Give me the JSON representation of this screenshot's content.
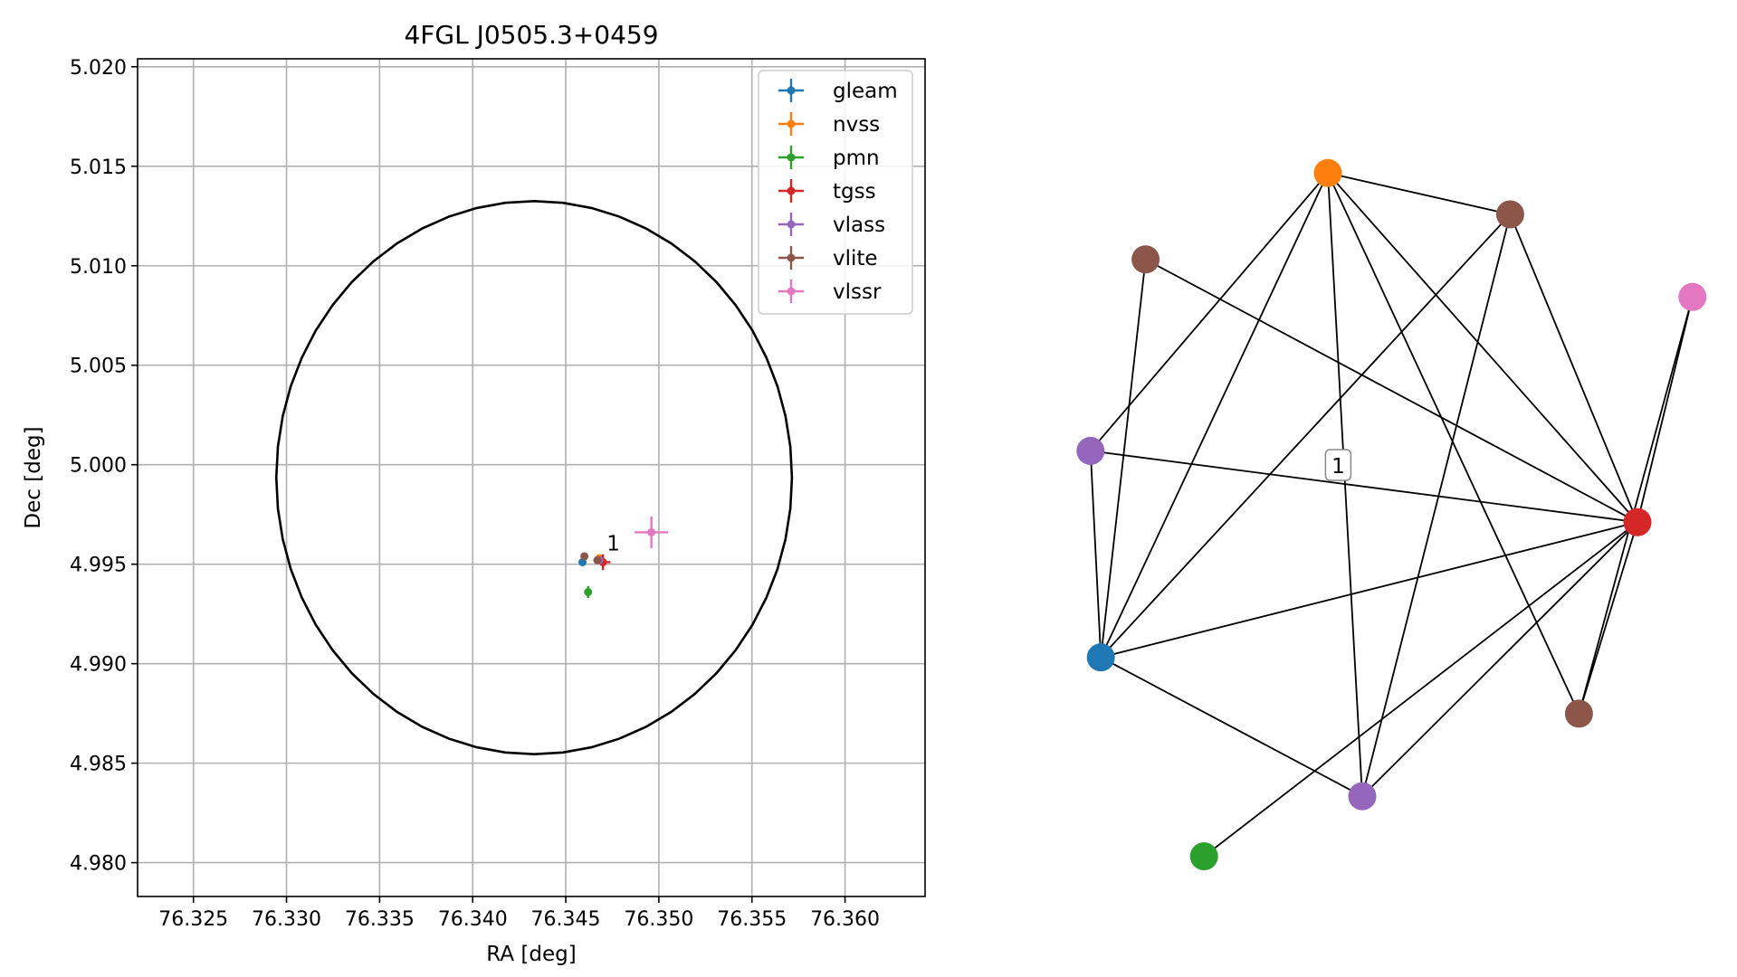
{
  "chart_data": [
    {
      "type": "scatter",
      "title": "4FGL J0505.3+0459",
      "xlabel": "RA [deg]",
      "ylabel": "Dec [deg]",
      "xlim": [
        76.322,
        76.3643
      ],
      "ylim": [
        4.9783,
        5.0204
      ],
      "xticks": [
        76.325,
        76.33,
        76.335,
        76.34,
        76.345,
        76.35,
        76.355,
        76.36
      ],
      "xtick_labels": [
        "76.325",
        "76.330",
        "76.335",
        "76.340",
        "76.345",
        "76.350",
        "76.355",
        "76.360"
      ],
      "yticks": [
        4.98,
        4.985,
        4.99,
        4.995,
        5.0,
        5.005,
        5.01,
        5.015,
        5.02
      ],
      "ytick_labels": [
        "4.980",
        "4.985",
        "4.990",
        "4.995",
        "5.000",
        "5.005",
        "5.010",
        "5.015",
        "5.020"
      ],
      "grid": true,
      "legend_position": "top-right",
      "ellipse": {
        "center_ra": 76.3433,
        "center_dec": 4.99935,
        "semi_ra": 0.01385,
        "semi_dec": 0.0139,
        "color": "#000000"
      },
      "series": [
        {
          "name": "gleam",
          "color": "#1f77b4",
          "points": [
            {
              "ra": 76.3459,
              "dec": 4.9951,
              "err_ra": 0.0001,
              "err_dec": 0.0001
            }
          ]
        },
        {
          "name": "nvss",
          "color": "#ff7f0e",
          "points": [
            {
              "ra": 76.3468,
              "dec": 4.9953,
              "err_ra": 0.0001,
              "err_dec": 0.0002
            }
          ]
        },
        {
          "name": "pmn",
          "color": "#2ca02c",
          "points": [
            {
              "ra": 76.3462,
              "dec": 4.9936,
              "err_ra": 0.0001,
              "err_dec": 0.0003
            }
          ]
        },
        {
          "name": "tgss",
          "color": "#d62728",
          "points": [
            {
              "ra": 76.347,
              "dec": 4.9951,
              "err_ra": 0.0004,
              "err_dec": 0.0004
            }
          ]
        },
        {
          "name": "vlass",
          "color": "#9467bd",
          "points": [
            {
              "ra": 76.3468,
              "dec": 4.9952,
              "err_ra": 0.0001,
              "err_dec": 0.0001
            }
          ]
        },
        {
          "name": "vlite",
          "color": "#8c564b",
          "points": [
            {
              "ra": 76.346,
              "dec": 4.9954,
              "err_ra": 0.0001,
              "err_dec": 0.0001
            },
            {
              "ra": 76.3467,
              "dec": 4.9952,
              "err_ra": 0.0001,
              "err_dec": 0.0001
            }
          ]
        },
        {
          "name": "vlssr",
          "color": "#e377c2",
          "points": [
            {
              "ra": 76.3496,
              "dec": 4.9966,
              "err_ra": 0.0009,
              "err_dec": 0.0008
            }
          ]
        }
      ],
      "annotations": [
        {
          "text": "1",
          "ra": 76.3471,
          "dec": 4.9955
        }
      ]
    },
    {
      "type": "network",
      "nodes": [
        {
          "id": "n0",
          "color": "#ff7f0e",
          "x": 0.45,
          "y": 0.11
        },
        {
          "id": "n1",
          "color": "#8c564b",
          "x": 0.715,
          "y": 0.165
        },
        {
          "id": "n2",
          "color": "#8c564b",
          "x": 0.185,
          "y": 0.225
        },
        {
          "id": "n3",
          "color": "#e377c2",
          "x": 0.98,
          "y": 0.275
        },
        {
          "id": "n4",
          "color": "#9467bd",
          "x": 0.105,
          "y": 0.48
        },
        {
          "id": "n5",
          "color": "#d62728",
          "x": 0.9,
          "y": 0.575
        },
        {
          "id": "n6",
          "color": "#1f77b4",
          "x": 0.12,
          "y": 0.755
        },
        {
          "id": "n7",
          "color": "#8c564b",
          "x": 0.815,
          "y": 0.83
        },
        {
          "id": "n8",
          "color": "#9467bd",
          "x": 0.5,
          "y": 0.94
        },
        {
          "id": "n9",
          "color": "#2ca02c",
          "x": 0.27,
          "y": 1.02
        }
      ],
      "edges": [
        [
          "n0",
          "n1"
        ],
        [
          "n0",
          "n4"
        ],
        [
          "n0",
          "n6"
        ],
        [
          "n0",
          "n5"
        ],
        [
          "n0",
          "n7"
        ],
        [
          "n0",
          "n8"
        ],
        [
          "n1",
          "n6"
        ],
        [
          "n1",
          "n5"
        ],
        [
          "n1",
          "n8"
        ],
        [
          "n2",
          "n6"
        ],
        [
          "n2",
          "n5"
        ],
        [
          "n3",
          "n7"
        ],
        [
          "n3",
          "n5"
        ],
        [
          "n4",
          "n5"
        ],
        [
          "n4",
          "n6"
        ],
        [
          "n5",
          "n6"
        ],
        [
          "n5",
          "n7"
        ],
        [
          "n5",
          "n8"
        ],
        [
          "n5",
          "n9"
        ],
        [
          "n6",
          "n8"
        ]
      ],
      "label": {
        "text": "1",
        "x": 0.465,
        "y": 0.5
      }
    }
  ]
}
